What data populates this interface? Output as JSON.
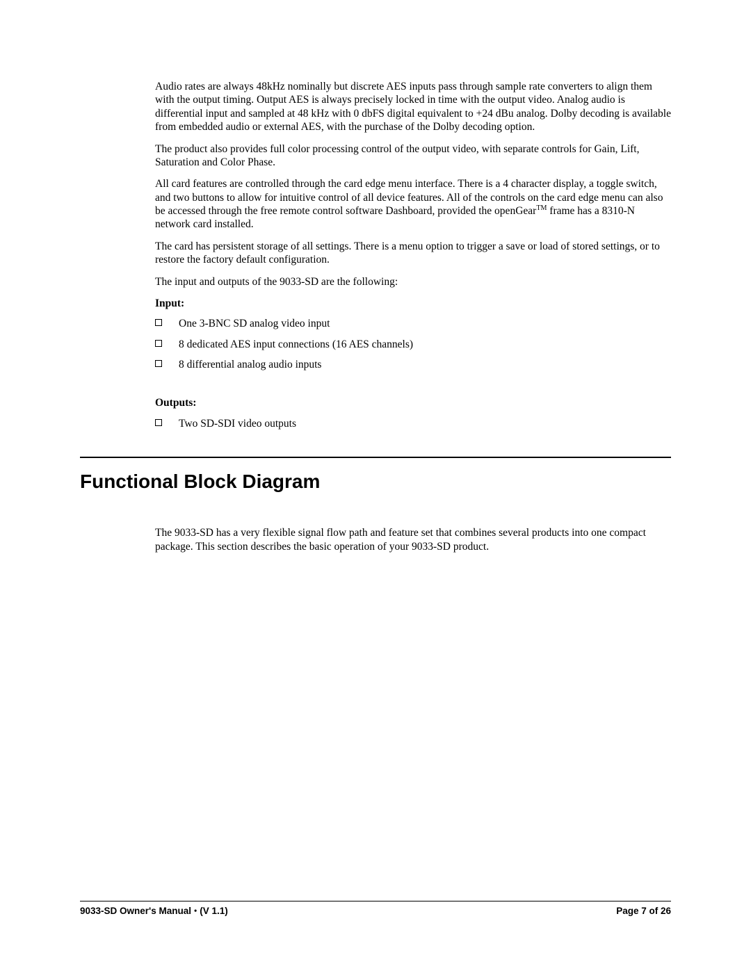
{
  "paragraphs": {
    "p1": "Audio rates are always 48kHz nominally but discrete AES inputs pass through sample rate converters to align them with the output timing. Output AES is always precisely locked in time with the output video. Analog audio is differential input and sampled at 48 kHz with 0 dbFS digital equivalent to +24 dBu analog. Dolby decoding is available from embedded audio or external AES, with the purchase of the Dolby decoding option.",
    "p2": "The product also provides full color processing control of the output video, with separate controls for Gain, Lift, Saturation and Color Phase.",
    "p3a": "All card features are controlled through the card edge menu interface. There is a 4 character display, a toggle switch, and two buttons to allow for intuitive control of all device features.  All of the controls on the card edge menu can also be accessed through the free remote control software Dashboard, provided the openGear",
    "p3_sup": "TM",
    "p3b": " frame has a 8310-N network card installed.",
    "p4": "The card has persistent storage of all settings. There is a menu option to trigger a save or load of stored settings, or to restore the factory default configuration.",
    "p5": "The input and outputs of the 9033-SD are the following:",
    "input_heading": "Input:",
    "inputs": [
      "One 3-BNC SD analog video input",
      "8 dedicated AES input connections (16 AES channels)",
      "8 differential analog audio inputs"
    ],
    "outputs_heading": "Outputs:",
    "outputs": [
      "Two SD-SDI video outputs"
    ],
    "section_heading": "Functional Block Diagram",
    "p6": "The 9033-SD has a very flexible signal flow path and feature set that combines several products into one compact package.  This section describes the basic operation of your 9033-SD product."
  },
  "footer": {
    "left_a": "9033-SD Owner's Manual  ",
    "left_b": "  (V 1.1)",
    "right": "Page 7 of 26"
  }
}
